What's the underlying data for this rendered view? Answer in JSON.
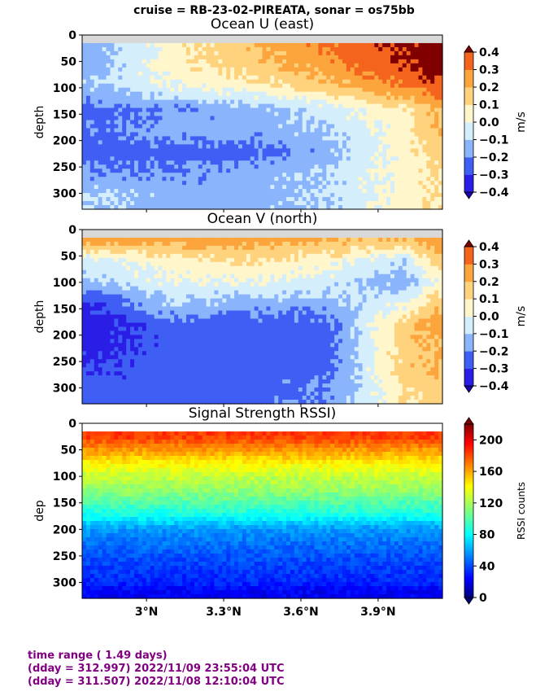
{
  "suptitle": "cruise = RB-23-02-PIREATA,  sonar = os75bb",
  "chart_data": [
    {
      "type": "heatmap",
      "title": "Ocean U (east)",
      "ylabel": "depth",
      "ylim": [
        330,
        0
      ],
      "yticks": [
        "0",
        "50",
        "100",
        "150",
        "200",
        "250",
        "300"
      ],
      "xlim": [
        2.75,
        4.15
      ],
      "x_unit_label": "degrees N latitude",
      "colorbar": {
        "label": "m/s",
        "ticks": [
          "0.4",
          "0.3",
          "0.2",
          "0.1",
          "0.0",
          "−0.1",
          "−0.2",
          "−0.3",
          "−0.4"
        ],
        "range": [
          -0.4,
          0.4
        ],
        "colormap": "jet"
      },
      "field_summary": {
        "depth": [
          20,
          60,
          100,
          140,
          180,
          220,
          260,
          300
        ],
        "lat": [
          2.8,
          3.1,
          3.4,
          3.7,
          4.0,
          4.12
        ],
        "u": [
          [
            -0.15,
            0.05,
            0.2,
            0.3,
            0.42,
            0.45
          ],
          [
            -0.15,
            0.05,
            0.15,
            0.25,
            0.42,
            0.45
          ],
          [
            -0.1,
            0.0,
            0.05,
            0.15,
            0.3,
            0.35
          ],
          [
            -0.25,
            -0.2,
            -0.15,
            -0.05,
            0.1,
            0.2
          ],
          [
            -0.2,
            -0.15,
            -0.15,
            -0.1,
            0.05,
            0.2
          ],
          [
            -0.25,
            -0.25,
            -0.25,
            -0.15,
            0.05,
            0.15
          ],
          [
            -0.2,
            -0.2,
            -0.15,
            -0.1,
            0.05,
            0.1
          ],
          [
            -0.1,
            -0.15,
            -0.15,
            -0.1,
            0.05,
            0.1
          ]
        ]
      }
    },
    {
      "type": "heatmap",
      "title": "Ocean V (north)",
      "ylabel": "depth",
      "ylim": [
        330,
        0
      ],
      "yticks": [
        "0",
        "50",
        "100",
        "150",
        "200",
        "250",
        "300"
      ],
      "xlim": [
        2.75,
        4.15
      ],
      "colorbar": {
        "label": "m/s",
        "ticks": [
          "0.4",
          "0.3",
          "0.2",
          "0.1",
          "0.0",
          "−0.1",
          "−0.2",
          "−0.3",
          "−0.4"
        ],
        "range": [
          -0.4,
          0.4
        ],
        "colormap": "jet"
      },
      "field_summary": {
        "depth": [
          20,
          60,
          100,
          140,
          180,
          220,
          260,
          300
        ],
        "lat": [
          2.8,
          3.1,
          3.4,
          3.7,
          4.0,
          4.12
        ],
        "v": [
          [
            0.25,
            0.25,
            0.25,
            0.2,
            0.2,
            0.25
          ],
          [
            -0.05,
            0.05,
            0.1,
            0.05,
            -0.1,
            0.15
          ],
          [
            -0.1,
            0.0,
            0.0,
            -0.05,
            -0.15,
            0.0
          ],
          [
            -0.3,
            -0.1,
            -0.15,
            -0.15,
            0.0,
            0.15
          ],
          [
            -0.35,
            -0.25,
            -0.25,
            -0.25,
            0.15,
            0.25
          ],
          [
            -0.35,
            -0.25,
            -0.25,
            -0.25,
            0.15,
            0.2
          ],
          [
            -0.3,
            -0.25,
            -0.25,
            -0.25,
            0.15,
            0.2
          ],
          [
            -0.25,
            -0.25,
            -0.25,
            -0.2,
            0.1,
            0.15
          ]
        ]
      }
    },
    {
      "type": "heatmap",
      "title": "Signal Strength RSSI)",
      "ylabel": "dep",
      "ylim": [
        330,
        0
      ],
      "yticks": [
        "0",
        "50",
        "100",
        "150",
        "200",
        "250",
        "300"
      ],
      "xlim": [
        2.75,
        4.15
      ],
      "xticks": [
        "3°N",
        "3.3°N",
        "3.6°N",
        "3.9°N"
      ],
      "xtick_values": [
        3.0,
        3.3,
        3.6,
        3.9
      ],
      "colorbar": {
        "label": "RSSI counts",
        "ticks": [
          "200",
          "160",
          "120",
          "80",
          "40",
          "0"
        ],
        "range": [
          0,
          220
        ],
        "colormap": "jet"
      },
      "field_summary": {
        "depth": [
          25,
          50,
          75,
          100,
          125,
          150,
          175,
          200,
          250,
          300,
          320
        ],
        "rssi": [
          180,
          160,
          140,
          125,
          115,
          100,
          85,
          60,
          45,
          35,
          25
        ]
      }
    }
  ],
  "footer": {
    "line1": "time range ( 1.49 days)",
    "line2": "(dday = 312.997) 2022/11/09 23:55:04 UTC",
    "line3": "(dday = 311.507) 2022/11/08 12:10:04 UTC"
  }
}
